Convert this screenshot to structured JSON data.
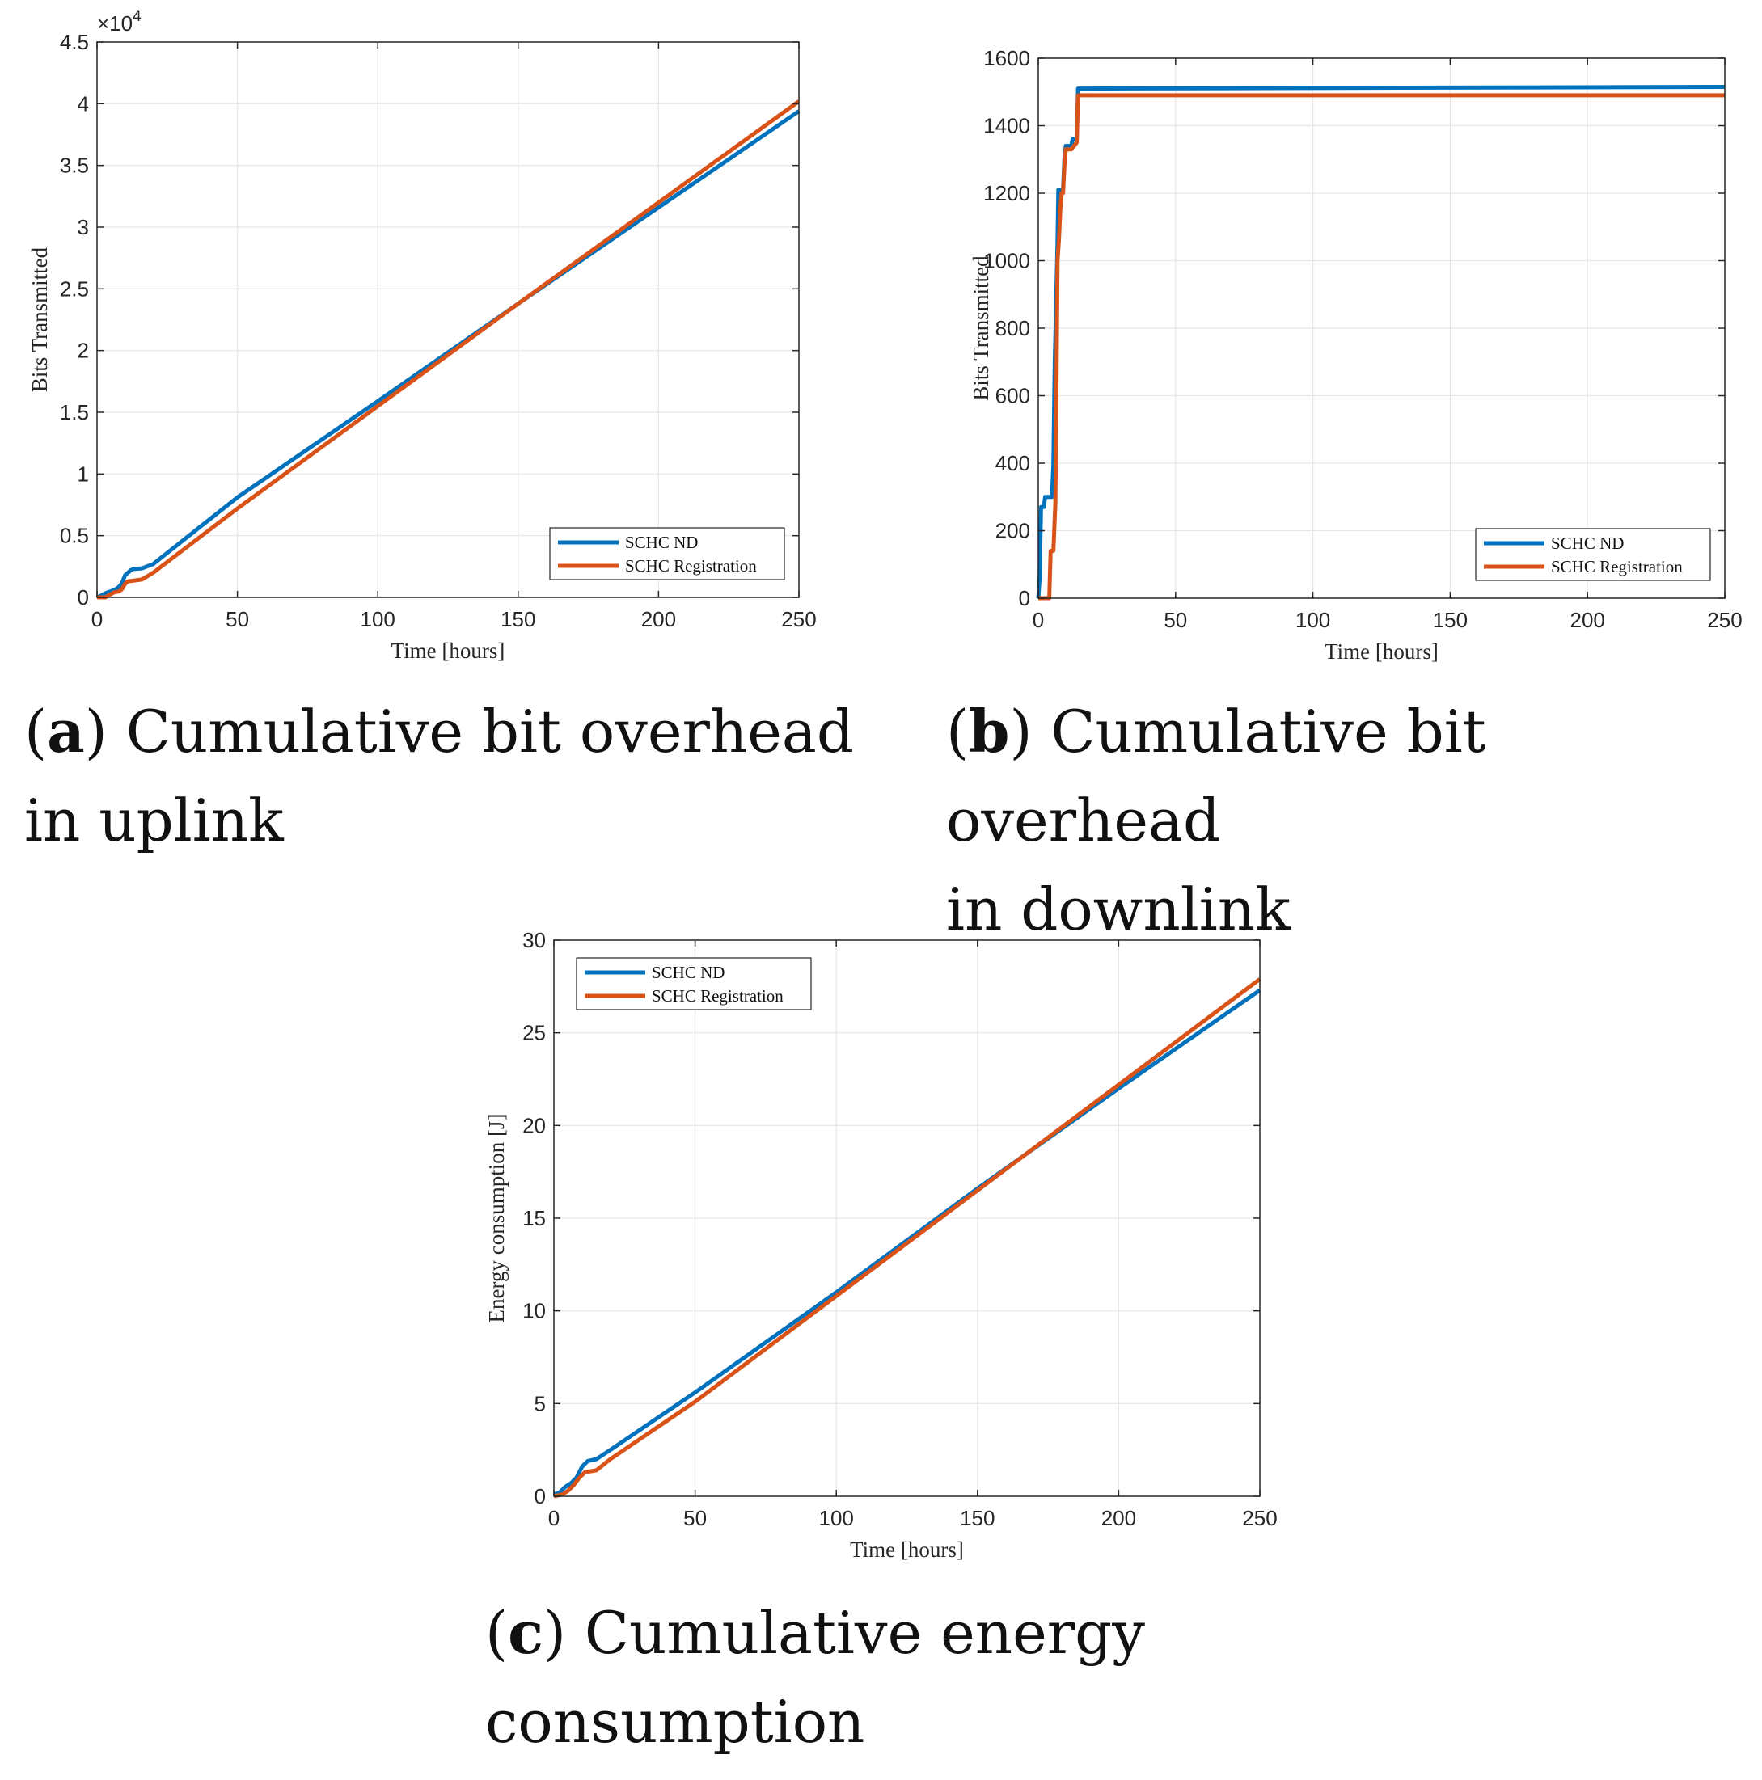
{
  "chart_data": [
    {
      "id": "a",
      "type": "line",
      "xlabel": "Time [hours]",
      "ylabel": "Bits Transmitted",
      "xlim": [
        0,
        250
      ],
      "ylim": [
        0,
        45000
      ],
      "xticks": [
        0,
        50,
        100,
        150,
        200,
        250
      ],
      "yticks": [
        0,
        5000,
        10000,
        15000,
        20000,
        25000,
        30000,
        35000,
        40000,
        45000
      ],
      "ytick_labels": [
        "0",
        "0.5",
        "1",
        "1.5",
        "2",
        "2.5",
        "3",
        "3.5",
        "4",
        "4.5"
      ],
      "exponent_label": "×10",
      "exponent_power": "4",
      "grid": true,
      "legend": "bottom-right",
      "series": [
        {
          "name": "SCHC ND",
          "color": "#0072BD",
          "points": [
            [
              0,
              0
            ],
            [
              2,
              200
            ],
            [
              3,
              350
            ],
            [
              5,
              500
            ],
            [
              7,
              700
            ],
            [
              8,
              900
            ],
            [
              9,
              1200
            ],
            [
              10,
              1800
            ],
            [
              11,
              2000
            ],
            [
              12,
              2200
            ],
            [
              13,
              2300
            ],
            [
              16,
              2350
            ],
            [
              20,
              2700
            ],
            [
              50,
              8100
            ],
            [
              100,
              15900
            ],
            [
              150,
              23800
            ],
            [
              200,
              31600
            ],
            [
              250,
              39400
            ]
          ]
        },
        {
          "name": "SCHC Registration",
          "color": "#D95319",
          "points": [
            [
              0,
              0
            ],
            [
              3,
              0
            ],
            [
              4,
              150
            ],
            [
              6,
              400
            ],
            [
              8,
              500
            ],
            [
              9,
              700
            ],
            [
              10,
              1100
            ],
            [
              11,
              1300
            ],
            [
              16,
              1450
            ],
            [
              20,
              2000
            ],
            [
              50,
              7200
            ],
            [
              100,
              15500
            ],
            [
              150,
              23800
            ],
            [
              200,
              32000
            ],
            [
              250,
              40200
            ]
          ]
        }
      ]
    },
    {
      "id": "b",
      "type": "line",
      "xlabel": "Time [hours]",
      "ylabel": "Bits Transmitted",
      "xlim": [
        0,
        250
      ],
      "ylim": [
        0,
        1600
      ],
      "xticks": [
        0,
        50,
        100,
        150,
        200,
        250
      ],
      "yticks": [
        0,
        200,
        400,
        600,
        800,
        1000,
        1200,
        1400,
        1600
      ],
      "ytick_labels": [
        "0",
        "200",
        "400",
        "600",
        "800",
        "1000",
        "1200",
        "1400",
        "1600"
      ],
      "grid": true,
      "legend": "bottom-right",
      "series": [
        {
          "name": "SCHC ND",
          "color": "#0072BD",
          "points": [
            [
              0,
              0
            ],
            [
              0.5,
              60
            ],
            [
              1,
              270
            ],
            [
              2,
              270
            ],
            [
              2.5,
              300
            ],
            [
              5,
              300
            ],
            [
              5.5,
              400
            ],
            [
              6,
              700
            ],
            [
              7,
              1050
            ],
            [
              7.3,
              1210
            ],
            [
              9,
              1210
            ],
            [
              9.5,
              1300
            ],
            [
              10,
              1340
            ],
            [
              12,
              1340
            ],
            [
              12.5,
              1360
            ],
            [
              14,
              1360
            ],
            [
              14.5,
              1510
            ],
            [
              250,
              1515
            ]
          ]
        },
        {
          "name": "SCHC Registration",
          "color": "#D95319",
          "points": [
            [
              0,
              0
            ],
            [
              4,
              0
            ],
            [
              4.5,
              140
            ],
            [
              5.5,
              140
            ],
            [
              6.2,
              280
            ],
            [
              6.5,
              500
            ],
            [
              7,
              1000
            ],
            [
              7.5,
              1060
            ],
            [
              8,
              1150
            ],
            [
              8.5,
              1200
            ],
            [
              9,
              1200
            ],
            [
              9.5,
              1280
            ],
            [
              10,
              1330
            ],
            [
              12,
              1330
            ],
            [
              13,
              1340
            ],
            [
              14,
              1350
            ],
            [
              14.5,
              1490
            ],
            [
              250,
              1490
            ]
          ]
        }
      ]
    },
    {
      "id": "c",
      "type": "line",
      "xlabel": "Time [hours]",
      "ylabel": "Energy consumption [J]",
      "xlim": [
        0,
        250
      ],
      "ylim": [
        0,
        30
      ],
      "xticks": [
        0,
        50,
        100,
        150,
        200,
        250
      ],
      "yticks": [
        0,
        5,
        10,
        15,
        20,
        25,
        30
      ],
      "ytick_labels": [
        "0",
        "5",
        "10",
        "15",
        "20",
        "25",
        "30"
      ],
      "grid": true,
      "legend": "top-left",
      "series": [
        {
          "name": "SCHC ND",
          "color": "#0072BD",
          "points": [
            [
              0,
              0.1
            ],
            [
              2,
              0.2
            ],
            [
              4,
              0.5
            ],
            [
              6,
              0.7
            ],
            [
              8,
              1.0
            ],
            [
              10,
              1.6
            ],
            [
              12,
              1.9
            ],
            [
              15,
              2.0
            ],
            [
              20,
              2.5
            ],
            [
              50,
              5.6
            ],
            [
              100,
              11.0
            ],
            [
              150,
              16.6
            ],
            [
              200,
              22.0
            ],
            [
              250,
              27.3
            ]
          ]
        },
        {
          "name": "SCHC Registration",
          "color": "#D95319",
          "points": [
            [
              0,
              0
            ],
            [
              3,
              0.1
            ],
            [
              5,
              0.3
            ],
            [
              7,
              0.6
            ],
            [
              9,
              1.0
            ],
            [
              11,
              1.3
            ],
            [
              15,
              1.4
            ],
            [
              20,
              2.0
            ],
            [
              50,
              5.1
            ],
            [
              100,
              10.8
            ],
            [
              150,
              16.5
            ],
            [
              200,
              22.2
            ],
            [
              250,
              27.9
            ]
          ]
        }
      ]
    }
  ],
  "captions": [
    {
      "letter": "a",
      "line1": ") Cumulative bit overhead",
      "line2": "in uplink"
    },
    {
      "letter": "b",
      "line1": ") Cumulative bit overhead",
      "line2": "in downlink"
    },
    {
      "letter": "c",
      "line1": ") Cumulative energy",
      "line2": "consumption"
    }
  ]
}
